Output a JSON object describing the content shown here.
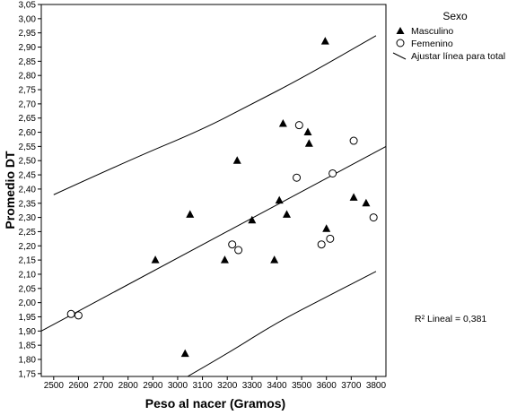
{
  "chart_data": {
    "type": "scatter",
    "xlabel": "Peso al nacer (Gramos)",
    "ylabel": "Promedio DT",
    "xlim": [
      2450,
      3840
    ],
    "ylim": [
      1.74,
      3.05
    ],
    "x_ticks": [
      2500,
      2600,
      2700,
      2800,
      2900,
      3000,
      3100,
      3200,
      3300,
      3400,
      3500,
      3600,
      3700,
      3800
    ],
    "y_ticks": [
      1.75,
      1.8,
      1.85,
      1.9,
      1.95,
      2.0,
      2.05,
      2.1,
      2.15,
      2.2,
      2.25,
      2.3,
      2.35,
      2.4,
      2.45,
      2.5,
      2.55,
      2.6,
      2.65,
      2.7,
      2.75,
      2.8,
      2.85,
      2.9,
      2.95,
      3.0,
      3.05
    ],
    "y_tick_labels": [
      "1,75",
      "1,80",
      "1,85",
      "1,90",
      "1,95",
      "2,00",
      "2,05",
      "2,10",
      "2,15",
      "2,20",
      "2,25",
      "2,30",
      "2,35",
      "2,40",
      "2,45",
      "2,50",
      "2,55",
      "2,60",
      "2,65",
      "2,70",
      "2,75",
      "2,80",
      "2,85",
      "2,90",
      "2,95",
      "3,00",
      "3,05"
    ],
    "grid": false,
    "legend": {
      "title": "Sexo",
      "position": "top-right",
      "entries": [
        {
          "label": "Masculino",
          "marker": "triangle"
        },
        {
          "label": "Femenino",
          "marker": "circle-open"
        },
        {
          "label": "Ajustar línea para total",
          "marker": "line"
        }
      ]
    },
    "annotation": "R² Lineal = 0,381",
    "series": [
      {
        "name": "Masculino",
        "marker": "triangle",
        "points": [
          [
            2910,
            2.15
          ],
          [
            3030,
            1.82
          ],
          [
            3050,
            2.31
          ],
          [
            3190,
            2.15
          ],
          [
            3240,
            2.5
          ],
          [
            3300,
            2.29
          ],
          [
            3390,
            2.15
          ],
          [
            3410,
            2.36
          ],
          [
            3425,
            2.63
          ],
          [
            3440,
            2.31
          ],
          [
            3525,
            2.6
          ],
          [
            3530,
            2.56
          ],
          [
            3595,
            2.92
          ],
          [
            3600,
            2.26
          ],
          [
            3710,
            2.37
          ],
          [
            3760,
            2.35
          ]
        ]
      },
      {
        "name": "Femenino",
        "marker": "circle-open",
        "points": [
          [
            2570,
            1.96
          ],
          [
            2600,
            1.955
          ],
          [
            3220,
            2.205
          ],
          [
            3245,
            2.185
          ],
          [
            3480,
            2.44
          ],
          [
            3490,
            2.625
          ],
          [
            3580,
            2.205
          ],
          [
            3615,
            2.225
          ],
          [
            3625,
            2.455
          ],
          [
            3710,
            2.57
          ],
          [
            3790,
            2.3
          ]
        ]
      },
      {
        "name": "Ajustar línea para total",
        "kind": "line",
        "points": [
          [
            2450,
            1.9
          ],
          [
            3840,
            2.55
          ]
        ]
      },
      {
        "kind": "upper-band",
        "points": [
          [
            2500,
            2.38
          ],
          [
            2800,
            2.5
          ],
          [
            3100,
            2.61
          ],
          [
            3300,
            2.7
          ],
          [
            3500,
            2.79
          ],
          [
            3800,
            2.94
          ]
        ]
      },
      {
        "kind": "lower-band",
        "points": [
          [
            3040,
            1.74
          ],
          [
            3200,
            1.82
          ],
          [
            3400,
            1.93
          ],
          [
            3600,
            2.02
          ],
          [
            3800,
            2.11
          ]
        ]
      }
    ]
  }
}
